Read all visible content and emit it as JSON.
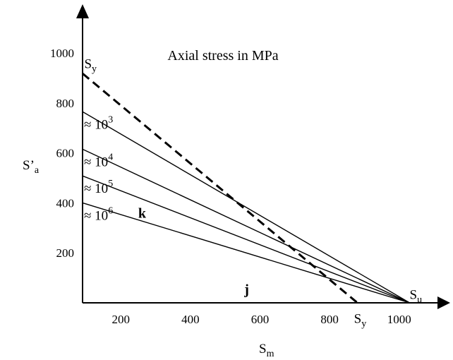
{
  "chart_data": {
    "type": "line",
    "title": "Axial stress in MPa",
    "xlabel": {
      "main": "S",
      "sub": "m"
    },
    "ylabel": {
      "main": "S’",
      "sub": "a"
    },
    "xlim": [
      90,
      1110
    ],
    "ylim": [
      0,
      1150
    ],
    "x_ticks": [
      200,
      400,
      600,
      800,
      1000
    ],
    "y_ticks": [
      200,
      400,
      600,
      800,
      1000
    ],
    "grid": false,
    "lines": [
      {
        "name": "≈ 10",
        "sup": "3",
        "x": [
          90,
          1030
        ],
        "y": [
          765,
          0
        ],
        "dashed": false
      },
      {
        "name": "≈ 10",
        "sup": "4",
        "x": [
          90,
          1030
        ],
        "y": [
          615,
          0
        ],
        "dashed": false
      },
      {
        "name": "≈ 10",
        "sup": "5",
        "x": [
          90,
          1030
        ],
        "y": [
          508,
          0
        ],
        "dashed": false
      },
      {
        "name": "≈ 10",
        "sup": "6",
        "x": [
          90,
          1030
        ],
        "y": [
          400,
          0
        ],
        "dashed": false
      },
      {
        "name": "S",
        "sub": "y",
        "x": [
          90,
          880
        ],
        "y": [
          918,
          0
        ],
        "dashed": true
      }
    ],
    "annotations": [
      {
        "text": "S",
        "sub": "y",
        "x": 95,
        "y": 940
      },
      {
        "text": "S",
        "sub": "u",
        "x": 1030,
        "y": 15
      },
      {
        "text": "S",
        "sub": "y",
        "x": 870,
        "y": -80
      },
      {
        "text": "k",
        "x": 250,
        "y": 340
      },
      {
        "text": "j",
        "x": 555,
        "y": 35
      }
    ]
  }
}
